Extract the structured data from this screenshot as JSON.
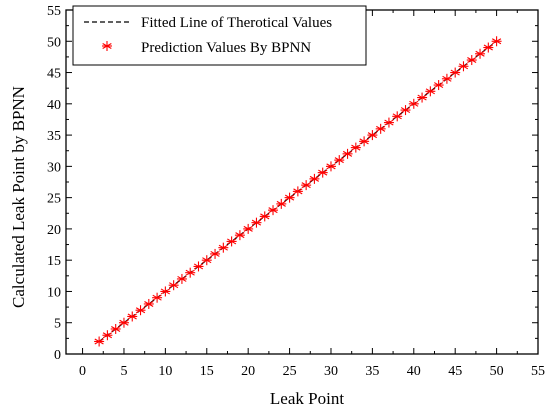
{
  "chart_data": {
    "type": "scatter",
    "title": "",
    "xlabel": "Leak Point",
    "ylabel": "Calculated Leak Point by BPNN",
    "xlim": [
      -2,
      55
    ],
    "ylim": [
      0,
      55
    ],
    "x_ticks": [
      0,
      5,
      10,
      15,
      20,
      25,
      30,
      35,
      40,
      45,
      50,
      55
    ],
    "y_ticks": [
      0,
      5,
      10,
      15,
      20,
      25,
      30,
      35,
      40,
      45,
      50,
      55
    ],
    "grid": false,
    "legend_position": "top-left",
    "series": [
      {
        "name": "Fitted Line of Therotical Values",
        "style": "dashed-line",
        "color": "#000000",
        "x": [
          2,
          50
        ],
        "y": [
          2,
          50
        ]
      },
      {
        "name": "Prediction Values By BPNN",
        "style": "asterisk-markers",
        "color": "#ff0000",
        "x": [
          2,
          3,
          4,
          5,
          6,
          7,
          8,
          9,
          10,
          11,
          12,
          13,
          14,
          15,
          16,
          17,
          18,
          19,
          20,
          21,
          22,
          23,
          24,
          25,
          26,
          27,
          28,
          29,
          30,
          31,
          32,
          33,
          34,
          35,
          36,
          37,
          38,
          39,
          40,
          41,
          42,
          43,
          44,
          45,
          46,
          47,
          48,
          49,
          50
        ],
        "y": [
          2,
          3,
          4,
          5,
          6,
          7,
          8,
          9,
          10,
          11,
          12,
          13,
          14,
          15,
          16,
          17,
          18,
          19,
          20,
          21,
          22,
          23,
          24,
          25,
          26,
          27,
          28,
          29,
          30,
          31,
          32,
          33,
          34,
          35,
          36,
          37,
          38,
          39,
          40,
          41,
          42,
          43,
          44,
          45,
          46,
          47,
          48,
          49,
          50
        ]
      }
    ]
  }
}
